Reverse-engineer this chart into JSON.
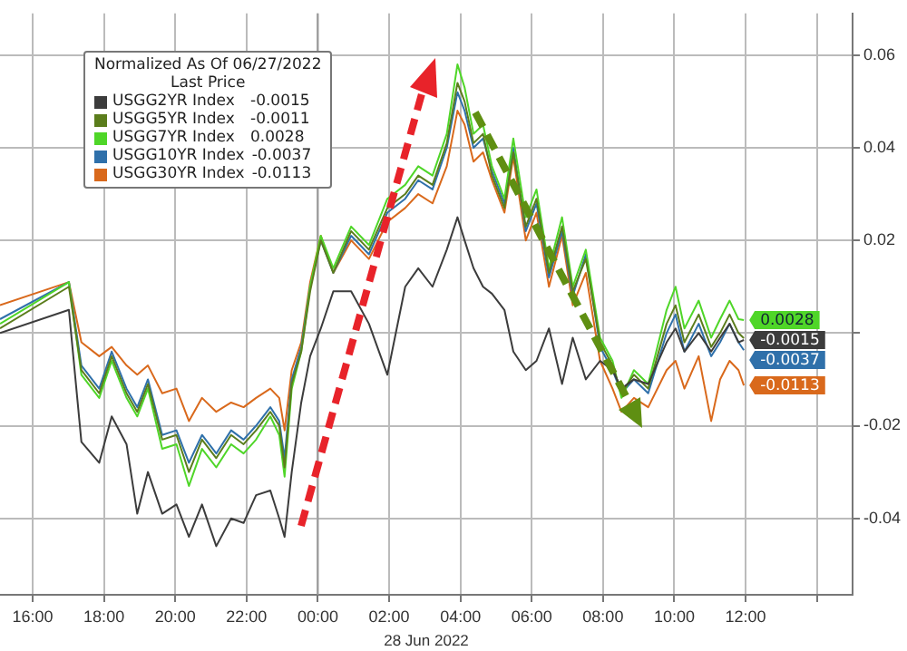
{
  "chart_data": {
    "type": "line",
    "xlabel": "28 Jun 2022",
    "legend_title": "Normalized As Of 06/27/2022\nLast Price",
    "legend": "top left",
    "grid": true,
    "marker": "none",
    "line_style": "solid",
    "xlim": [
      "2022-06-27T15:05",
      "2022-06-28T15:00"
    ],
    "xticks": [
      {
        "value": "2022-06-27T16:00",
        "label": "16:00"
      },
      {
        "value": "2022-06-27T18:00",
        "label": "18:00"
      },
      {
        "value": "2022-06-27T20:00",
        "label": "20:00"
      },
      {
        "value": "2022-06-27T22:00",
        "label": "22:00"
      },
      {
        "value": "2022-06-28T00:00",
        "label": "00:00"
      },
      {
        "value": "2022-06-28T02:00",
        "label": "02:00"
      },
      {
        "value": "2022-06-28T04:00",
        "label": "04:00"
      },
      {
        "value": "2022-06-28T06:00",
        "label": "06:00"
      },
      {
        "value": "2022-06-28T08:00",
        "label": "08:00"
      },
      {
        "value": "2022-06-28T10:00",
        "label": "10:00"
      },
      {
        "value": "2022-06-28T12:00",
        "label": "12:00"
      },
      {
        "value": "2022-06-28T14:00",
        "label": null
      }
    ],
    "ylim": [
      -0.0565,
      0.069
    ],
    "yticks": [
      -0.04,
      -0.02,
      {
        "value": 0,
        "label": null
      },
      0.02,
      0.04,
      0.06
    ],
    "ref_lines": [
      {
        "axis": "x",
        "value": "2022-06-28T00:00",
        "color": "#9a9a9a"
      }
    ],
    "x": [
      "2022-06-27T15:05",
      "2022-06-27T17:01",
      "2022-06-27T17:22",
      "2022-06-27T17:52",
      "2022-06-27T18:13",
      "2022-06-27T18:38",
      "2022-06-27T18:56",
      "2022-06-27T19:14",
      "2022-06-27T19:38",
      "2022-06-27T20:02",
      "2022-06-27T20:23",
      "2022-06-27T20:45",
      "2022-06-27T21:09",
      "2022-06-27T21:34",
      "2022-06-27T21:55",
      "2022-06-27T22:16",
      "2022-06-27T22:40",
      "2022-06-27T22:55",
      "2022-06-27T23:04",
      "2022-06-27T23:16",
      "2022-06-27T23:32",
      "2022-06-27T23:47",
      "2022-06-28T00:05",
      "2022-06-28T00:26",
      "2022-06-28T00:56",
      "2022-06-28T01:26",
      "2022-06-28T01:57",
      "2022-06-28T02:27",
      "2022-06-28T02:49",
      "2022-06-28T03:13",
      "2022-06-28T03:37",
      "2022-06-28T03:55",
      "2022-06-28T04:07",
      "2022-06-28T04:22",
      "2022-06-28T04:38",
      "2022-06-28T04:53",
      "2022-06-28T05:14",
      "2022-06-28T05:29",
      "2022-06-28T05:50",
      "2022-06-28T06:08",
      "2022-06-28T06:29",
      "2022-06-28T06:51",
      "2022-06-28T07:09",
      "2022-06-28T07:31",
      "2022-06-28T07:55",
      "2022-06-28T08:16",
      "2022-06-28T08:31",
      "2022-06-28T08:52",
      "2022-06-28T09:16",
      "2022-06-28T09:47",
      "2022-06-28T10:02",
      "2022-06-28T10:17",
      "2022-06-28T10:41",
      "2022-06-28T11:02",
      "2022-06-28T11:17",
      "2022-06-28T11:33",
      "2022-06-28T11:48",
      "2022-06-28T11:57"
    ],
    "series": [
      {
        "name": "USGG2YR Index -0.0015",
        "color": "#3c3c3c",
        "values": [
          0,
          0.005,
          -0.0235,
          -0.028,
          -0.018,
          -0.024,
          -0.039,
          -0.03,
          -0.039,
          -0.037,
          -0.044,
          -0.037,
          -0.046,
          -0.04,
          -0.041,
          -0.035,
          -0.034,
          -0.04,
          -0.044,
          -0.03,
          -0.015,
          -0.005,
          0.001,
          0.009,
          0.009,
          0.002,
          -0.009,
          0.01,
          0.014,
          0.01,
          0.018,
          0.025,
          0.02,
          0.014,
          0.01,
          0.0085,
          0.005,
          -0.004,
          -0.008,
          -0.006,
          0.001,
          -0.011,
          -0.001,
          -0.01,
          -0.006,
          -0.008,
          -0.012,
          -0.01,
          -0.011,
          -0.002,
          0.001,
          -0.004,
          0,
          -0.004,
          -0.001,
          0.002,
          -0.002,
          -0.0015
        ],
        "value_labels": [
          null,
          null,
          null,
          null,
          null,
          null,
          null,
          null,
          null,
          null,
          null,
          null,
          null,
          null,
          null,
          null,
          null,
          null,
          null,
          null,
          null,
          null,
          null,
          null,
          null,
          null,
          null,
          null,
          null,
          null,
          null,
          null,
          null,
          null,
          null,
          null,
          null,
          null,
          null,
          null,
          null,
          null,
          null,
          null,
          null,
          null,
          null,
          null,
          null,
          null,
          null,
          null,
          null,
          null,
          null,
          null,
          null,
          "-0.0015"
        ]
      },
      {
        "name": "USGG5YR Index -0.0011",
        "color": "#5b7d1c",
        "values": [
          0.001,
          0.01,
          -0.008,
          -0.013,
          -0.005,
          -0.013,
          -0.017,
          -0.011,
          -0.023,
          -0.022,
          -0.03,
          -0.023,
          -0.027,
          -0.022,
          -0.024,
          -0.021,
          -0.017,
          -0.02,
          -0.029,
          -0.011,
          -0.004,
          0.009,
          0.02,
          0.013,
          0.022,
          0.018,
          0.027,
          0.03,
          0.034,
          0.032,
          0.041,
          0.054,
          0.05,
          0.041,
          0.043,
          0.034,
          0.027,
          0.039,
          0.023,
          0.029,
          0.013,
          0.023,
          0.009,
          0.016,
          -0.002,
          -0.007,
          -0.013,
          -0.009,
          -0.012,
          0.002,
          0.006,
          -0.002,
          0.004,
          -0.003,
          0,
          0.004,
          0,
          -0.0011
        ]
      },
      {
        "name": "USGG7YR Index 0.0028",
        "color": "#4fd628",
        "values": [
          0.002,
          0.011,
          -0.009,
          -0.014,
          -0.006,
          -0.014,
          -0.018,
          -0.012,
          -0.025,
          -0.024,
          -0.033,
          -0.025,
          -0.029,
          -0.024,
          -0.026,
          -0.023,
          -0.018,
          -0.022,
          -0.031,
          -0.012,
          -0.004,
          0.01,
          0.021,
          0.014,
          0.023,
          0.019,
          0.029,
          0.032,
          0.036,
          0.034,
          0.043,
          0.058,
          0.053,
          0.043,
          0.045,
          0.036,
          0.029,
          0.042,
          0.025,
          0.031,
          0.014,
          0.025,
          0.01,
          0.018,
          -0.001,
          -0.006,
          -0.014,
          -0.008,
          -0.011,
          0.005,
          0.01,
          0.001,
          0.007,
          -0.001,
          0.003,
          0.007,
          0.003,
          0.0028
        ],
        "value_labels": [
          null,
          null,
          null,
          null,
          null,
          null,
          null,
          null,
          null,
          null,
          null,
          null,
          null,
          null,
          null,
          null,
          null,
          null,
          null,
          null,
          null,
          null,
          null,
          null,
          null,
          null,
          null,
          null,
          null,
          null,
          null,
          null,
          null,
          null,
          null,
          null,
          null,
          null,
          null,
          null,
          null,
          null,
          null,
          null,
          null,
          null,
          null,
          null,
          null,
          null,
          null,
          null,
          null,
          null,
          null,
          null,
          null,
          "0.0028"
        ]
      },
      {
        "name": "USGG10YR Index -0.0037",
        "color": "#2f70aa",
        "values": [
          0.003,
          0.011,
          -0.007,
          -0.012,
          -0.004,
          -0.012,
          -0.016,
          -0.01,
          -0.022,
          -0.021,
          -0.028,
          -0.022,
          -0.026,
          -0.021,
          -0.023,
          -0.02,
          -0.016,
          -0.019,
          -0.027,
          -0.01,
          -0.003,
          0.01,
          0.02,
          0.013,
          0.021,
          0.017,
          0.026,
          0.029,
          0.033,
          0.031,
          0.04,
          0.052,
          0.048,
          0.04,
          0.042,
          0.035,
          0.028,
          0.04,
          0.022,
          0.028,
          0.012,
          0.022,
          0.008,
          0.017,
          -0.003,
          -0.008,
          -0.013,
          -0.01,
          -0.013,
          0,
          0.004,
          -0.004,
          0.002,
          -0.005,
          -0.002,
          0.002,
          -0.002,
          -0.0037
        ],
        "value_labels": [
          null,
          null,
          null,
          null,
          null,
          null,
          null,
          null,
          null,
          null,
          null,
          null,
          null,
          null,
          null,
          null,
          null,
          null,
          null,
          null,
          null,
          null,
          null,
          null,
          null,
          null,
          null,
          null,
          null,
          null,
          null,
          null,
          null,
          null,
          null,
          null,
          null,
          null,
          null,
          null,
          null,
          null,
          null,
          null,
          null,
          null,
          null,
          null,
          null,
          null,
          null,
          null,
          null,
          null,
          null,
          null,
          null,
          "-0.0037"
        ]
      },
      {
        "name": "USGG30YR Index -0.0113",
        "color": "#d9691c",
        "values": [
          0.006,
          0.011,
          -0.002,
          -0.005,
          -0.003,
          -0.007,
          -0.009,
          -0.007,
          -0.013,
          -0.012,
          -0.019,
          -0.014,
          -0.017,
          -0.015,
          -0.016,
          -0.014,
          -0.012,
          -0.014,
          -0.021,
          -0.008,
          -0.002,
          0.011,
          0.021,
          0.013,
          0.02,
          0.016,
          0.024,
          0.027,
          0.03,
          0.028,
          0.036,
          0.048,
          0.045,
          0.037,
          0.039,
          0.033,
          0.026,
          0.038,
          0.02,
          0.026,
          0.01,
          0.021,
          0.006,
          0.013,
          -0.006,
          -0.012,
          -0.017,
          -0.014,
          -0.016,
          -0.008,
          -0.006,
          -0.012,
          -0.005,
          -0.019,
          -0.01,
          -0.006,
          -0.008,
          -0.0113
        ],
        "value_labels": [
          null,
          null,
          null,
          null,
          null,
          null,
          null,
          null,
          null,
          null,
          null,
          null,
          null,
          null,
          null,
          null,
          null,
          null,
          null,
          null,
          null,
          null,
          null,
          null,
          null,
          null,
          null,
          null,
          null,
          null,
          null,
          null,
          null,
          null,
          null,
          null,
          null,
          null,
          null,
          null,
          null,
          null,
          null,
          null,
          null,
          null,
          null,
          null,
          null,
          null,
          null,
          null,
          null,
          null,
          null,
          null,
          null,
          "-0.0113"
        ]
      }
    ]
  }
}
